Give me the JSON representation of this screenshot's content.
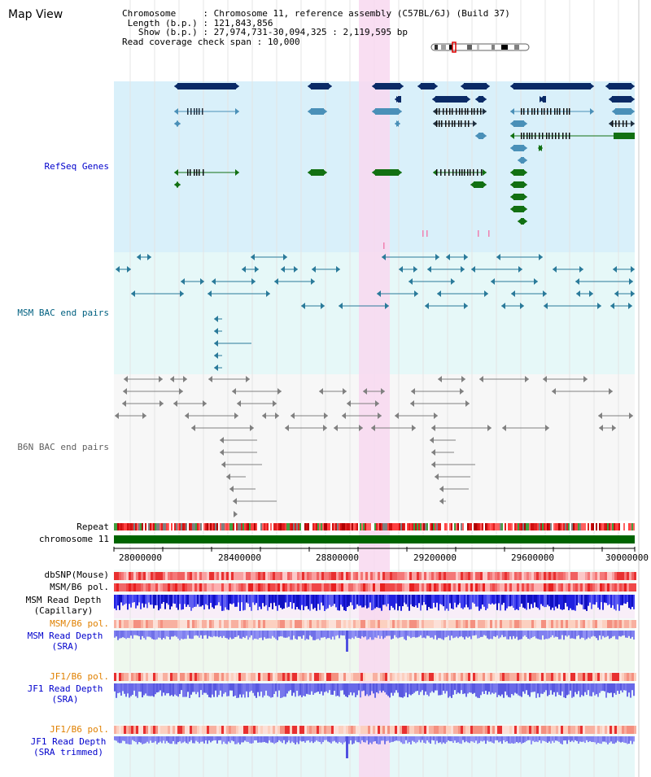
{
  "page": {
    "title": "Map View"
  },
  "info": {
    "chromosome_key": "Chromosome",
    "chromosome_value": "Chromosome 11, reference assembly (C57BL/6J) (Build 37)",
    "length_key": "Length (b.p.)",
    "length_value": "121,843,856",
    "show_key": "Show (b.p.)",
    "show_value": "27,974,731-30,094,325 : 2,119,595 bp",
    "span_key": "Read coverage check span",
    "span_value": "10,000"
  },
  "tracks": {
    "refseq": "RefSeq Genes",
    "msm_bac": "MSM BAC end pairs",
    "b6n_bac": "B6N BAC end pairs",
    "repeat": "Repeat",
    "chromosome": "chromosome 11",
    "dbsnp": "dbSNP(Mouse)",
    "msm_b6_pol": "MSM/B6 pol.",
    "msm_depth_cap_1": "MSM Read Depth",
    "msm_depth_cap_2": "(Capillary)",
    "msm_b6_pol_sra": "MSM/B6 pol.",
    "msm_depth_sra_1": "MSM Read Depth",
    "msm_depth_sra_2": "(SRA)",
    "jf1_b6_pol": "JF1/B6 pol.",
    "jf1_depth_sra_1": "JF1 Read Depth",
    "jf1_depth_sra_2": "(SRA)",
    "jf1_b6_pol_trim": "JF1/B6 pol.",
    "jf1_depth_trim_1": "JF1 Read Depth",
    "jf1_depth_trim_2": "(SRA trimmed)"
  },
  "axis": {
    "ticks": [
      "28000000",
      "28400000",
      "28800000",
      "29200000",
      "29600000",
      "30000000"
    ]
  },
  "colors": {
    "refseq_bg": "#d9f0fa",
    "msm_bg": "#e6f8f8",
    "highlight": "#f8d8f0",
    "gene_dark": "#0a2a66",
    "gene_mid": "#4a90b8",
    "gene_green": "#127012",
    "label_blue": "#0000cc",
    "label_teal": "#006080",
    "label_orange": "#e08000",
    "chromosome_green": "#006400"
  }
}
